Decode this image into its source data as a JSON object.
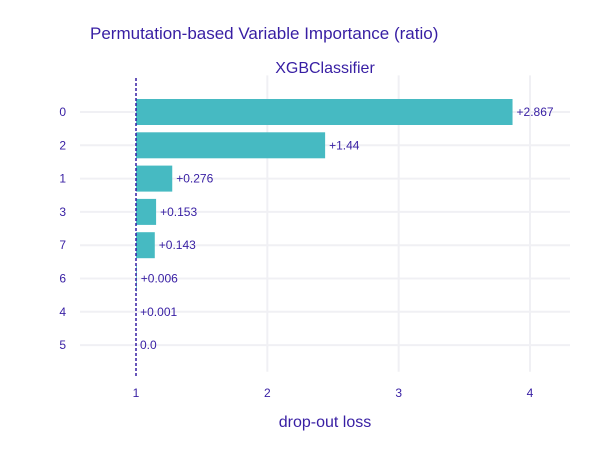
{
  "chart_data": {
    "type": "bar",
    "orientation": "horizontal",
    "title": "Permutation-based Variable Importance (ratio)",
    "subtitle": "XGBClassifier",
    "xlabel": "drop-out loss",
    "ylabel": "",
    "baseline": 1,
    "xlim": [
      0.6,
      4.3
    ],
    "xticks": [
      1,
      2,
      3,
      4
    ],
    "grid": true,
    "categories": [
      "0",
      "2",
      "1",
      "3",
      "7",
      "6",
      "4",
      "5"
    ],
    "values": [
      3.867,
      2.44,
      1.276,
      1.153,
      1.143,
      1.006,
      1.001,
      1.0
    ],
    "labels": [
      "+2.867",
      "+1.44",
      "+0.276",
      "+0.153",
      "+0.143",
      "+0.006",
      "+0.001",
      "0.0"
    ],
    "colors": {
      "bar": "#46bac2",
      "text": "#371ea3",
      "grid": "#f0f0f4",
      "baseline": "#371ea3"
    }
  }
}
